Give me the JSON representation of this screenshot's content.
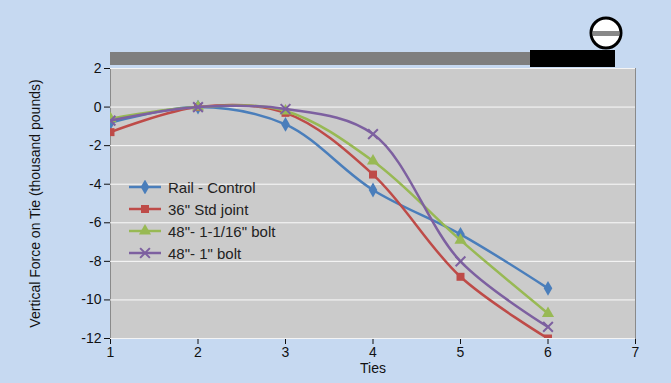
{
  "chart_data": {
    "type": "line",
    "x_label": "Ties",
    "y_label": "Vertical Force on Tie (thousand pounds)",
    "x": [
      1,
      2,
      3,
      4,
      5,
      6
    ],
    "xlim": [
      1,
      7
    ],
    "xticks": [
      1,
      2,
      3,
      4,
      5,
      6,
      7
    ],
    "ylim": [
      -12,
      2
    ],
    "yticks": [
      -12,
      -10,
      -8,
      -6,
      -4,
      -2,
      0,
      2
    ],
    "grid": true,
    "legend": "lower left",
    "series": [
      {
        "name": "Rail - Control",
        "color": "#4a7ebb",
        "marker": "diamond",
        "values": [
          -0.8,
          0,
          -0.9,
          -4.3,
          -6.6,
          -9.4
        ]
      },
      {
        "name": "36\" Std joint",
        "color": "#be4b48",
        "marker": "square",
        "values": [
          -1.3,
          0,
          -0.3,
          -3.5,
          -8.8,
          -12.0
        ]
      },
      {
        "name": "48\"- 1-1/16\" bolt",
        "color": "#98b954",
        "marker": "triangle",
        "values": [
          -0.6,
          0,
          -0.2,
          -2.8,
          -6.9,
          -10.7
        ]
      },
      {
        "name": "48\"- 1\" bolt",
        "color": "#7d60a0",
        "marker": "x",
        "values": [
          -0.7,
          0,
          -0.1,
          -1.4,
          -8.0,
          -11.4
        ]
      }
    ]
  }
}
